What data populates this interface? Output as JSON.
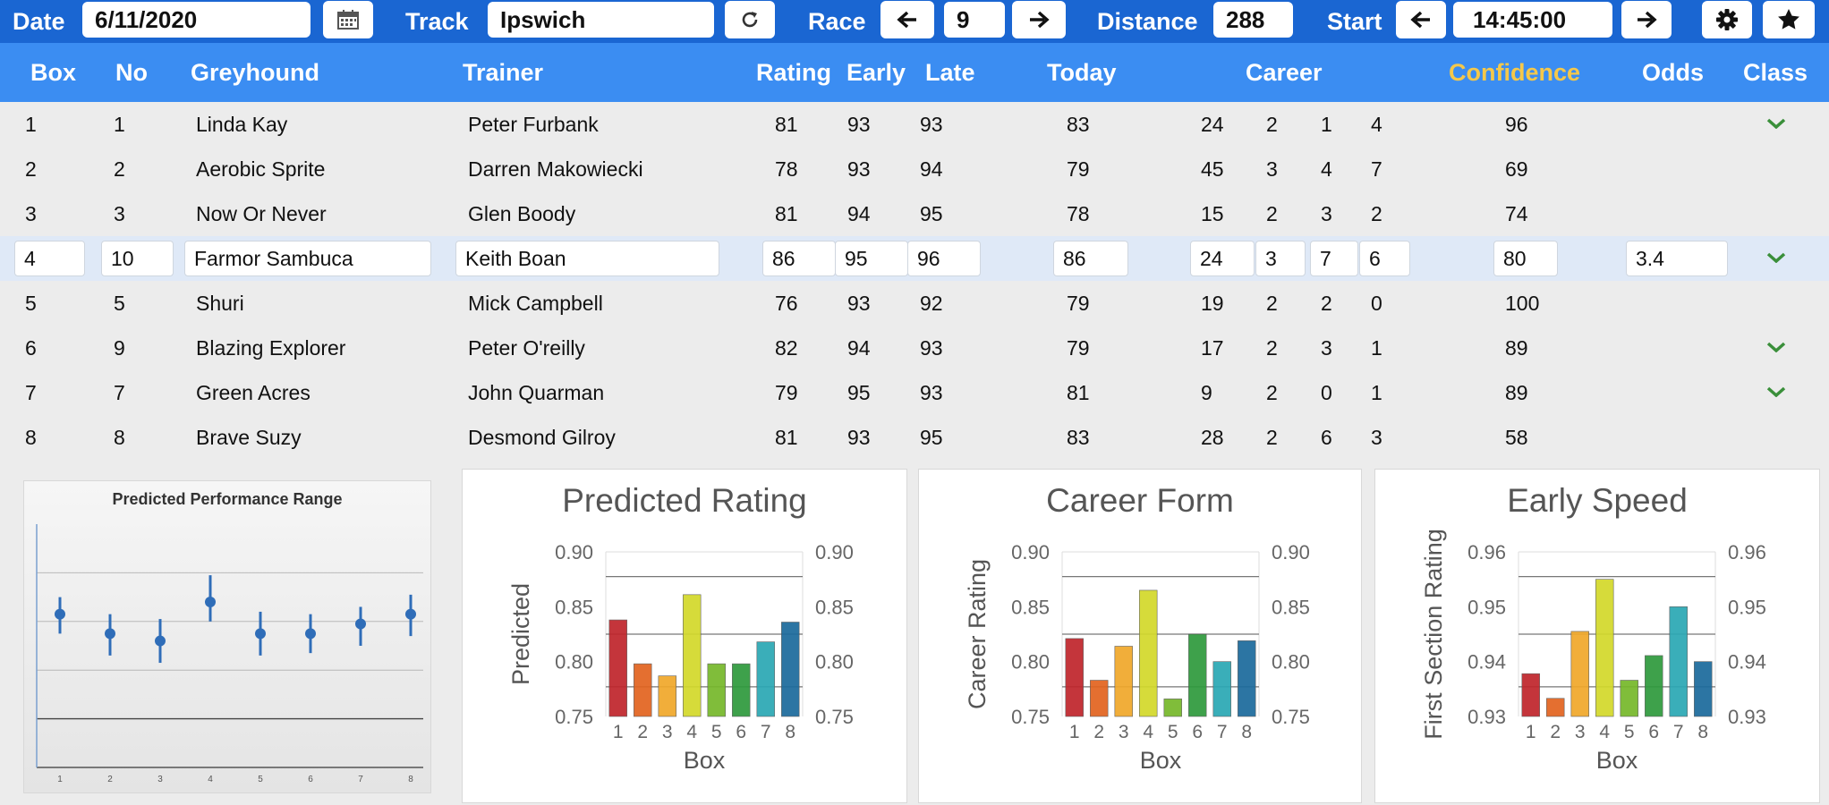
{
  "toolbar": {
    "date_label": "Date",
    "date_value": "6/11/2020",
    "track_label": "Track",
    "track_value": "Ipswich",
    "race_label": "Race",
    "race_value": "9",
    "distance_label": "Distance",
    "distance_value": "288",
    "start_label": "Start",
    "start_value": "14:45:00",
    "icons": [
      "calendar-icon",
      "refresh-icon",
      "arrow-left-icon",
      "arrow-right-icon",
      "gear-icon",
      "star-icon"
    ]
  },
  "columns": {
    "box": "Box",
    "no": "No",
    "greyhound": "Greyhound",
    "trainer": "Trainer",
    "rating": "Rating",
    "early": "Early",
    "late": "Late",
    "today": "Today",
    "career": "Career",
    "confidence": "Confidence",
    "odds": "Odds",
    "class": "Class"
  },
  "colors": {
    "toolbar": "#1a66d2",
    "header": "#3b8df2",
    "confidence_header": "#f5c84a",
    "check": "#3a8f3a",
    "selected_row": "#dfe9f7"
  },
  "rows": [
    {
      "box": "1",
      "no": "1",
      "greyhound": "Linda Kay",
      "trainer": "Peter Furbank",
      "rating": "81",
      "early": "93",
      "late": "93",
      "today": "83",
      "career": [
        "24",
        "2",
        "1",
        "4"
      ],
      "confidence": "96",
      "odds": "",
      "class_check": true
    },
    {
      "box": "2",
      "no": "2",
      "greyhound": "Aerobic Sprite",
      "trainer": "Darren Makowiecki",
      "rating": "78",
      "early": "93",
      "late": "94",
      "today": "79",
      "career": [
        "45",
        "3",
        "4",
        "7"
      ],
      "confidence": "69",
      "odds": "",
      "class_check": false
    },
    {
      "box": "3",
      "no": "3",
      "greyhound": "Now Or Never",
      "trainer": "Glen Boody",
      "rating": "81",
      "early": "94",
      "late": "95",
      "today": "78",
      "career": [
        "15",
        "2",
        "3",
        "2"
      ],
      "confidence": "74",
      "odds": "",
      "class_check": false
    },
    {
      "box": "4",
      "no": "10",
      "greyhound": "Farmor Sambuca",
      "trainer": "Keith Boan",
      "rating": "86",
      "early": "95",
      "late": "96",
      "today": "86",
      "career": [
        "24",
        "3",
        "7",
        "6"
      ],
      "confidence": "80",
      "odds": "3.4",
      "class_check": true,
      "selected": true
    },
    {
      "box": "5",
      "no": "5",
      "greyhound": "Shuri",
      "trainer": "Mick Campbell",
      "rating": "76",
      "early": "93",
      "late": "92",
      "today": "79",
      "career": [
        "19",
        "2",
        "2",
        "0"
      ],
      "confidence": "100",
      "odds": "",
      "class_check": false
    },
    {
      "box": "6",
      "no": "9",
      "greyhound": "Blazing Explorer",
      "trainer": "Peter O'reilly",
      "rating": "82",
      "early": "94",
      "late": "93",
      "today": "79",
      "career": [
        "17",
        "2",
        "3",
        "1"
      ],
      "confidence": "89",
      "odds": "",
      "class_check": true
    },
    {
      "box": "7",
      "no": "7",
      "greyhound": "Green Acres",
      "trainer": "John Quarman",
      "rating": "79",
      "early": "95",
      "late": "93",
      "today": "81",
      "career": [
        "9",
        "2",
        "0",
        "1"
      ],
      "confidence": "89",
      "odds": "",
      "class_check": true
    },
    {
      "box": "8",
      "no": "8",
      "greyhound": "Brave Suzy",
      "trainer": "Desmond Gilroy",
      "rating": "81",
      "early": "93",
      "late": "95",
      "today": "83",
      "career": [
        "28",
        "2",
        "6",
        "3"
      ],
      "confidence": "58",
      "odds": "",
      "class_check": false
    }
  ],
  "chart_data": [
    {
      "type": "scatter",
      "title": "Predicted Performance Range",
      "x": [
        "1",
        "2",
        "3",
        "4",
        "5",
        "6",
        "7",
        "8"
      ],
      "y": [
        0.63,
        0.55,
        0.52,
        0.68,
        0.55,
        0.55,
        0.59,
        0.63
      ],
      "low": [
        0.55,
        0.46,
        0.43,
        0.6,
        0.46,
        0.47,
        0.5,
        0.54
      ],
      "high": [
        0.7,
        0.63,
        0.61,
        0.79,
        0.64,
        0.63,
        0.66,
        0.71
      ],
      "ylim": [
        0,
        1
      ],
      "grid": true
    },
    {
      "type": "bar",
      "title": "Predicted Rating",
      "xlabel": "Box",
      "ylabel": "Predicted",
      "categories": [
        "1",
        "2",
        "3",
        "4",
        "5",
        "6",
        "7",
        "8"
      ],
      "values": [
        0.838,
        0.798,
        0.787,
        0.861,
        0.798,
        0.798,
        0.818,
        0.836
      ],
      "ylim": [
        0.75,
        0.9
      ],
      "ticks": [
        "0.75",
        "0.80",
        "0.85",
        "0.90"
      ]
    },
    {
      "type": "bar",
      "title": "Career Form",
      "xlabel": "Box",
      "ylabel": "Career Rating",
      "categories": [
        "1",
        "2",
        "3",
        "4",
        "5",
        "6",
        "7",
        "8"
      ],
      "values": [
        0.821,
        0.783,
        0.814,
        0.865,
        0.766,
        0.825,
        0.8,
        0.819
      ],
      "ylim": [
        0.75,
        0.9
      ],
      "ticks": [
        "0.75",
        "0.80",
        "0.85",
        "0.90"
      ]
    },
    {
      "type": "bar",
      "title": "Early Speed",
      "xlabel": "Box",
      "ylabel": "First Section Rating",
      "categories": [
        "1",
        "2",
        "3",
        "4",
        "5",
        "6",
        "7",
        "8"
      ],
      "values": [
        0.9378,
        0.9333,
        0.9455,
        0.955,
        0.9366,
        0.9411,
        0.95,
        0.94
      ],
      "ylim": [
        0.93,
        0.96
      ],
      "ticks": [
        "0.93",
        "0.94",
        "0.95",
        "0.96"
      ]
    }
  ]
}
